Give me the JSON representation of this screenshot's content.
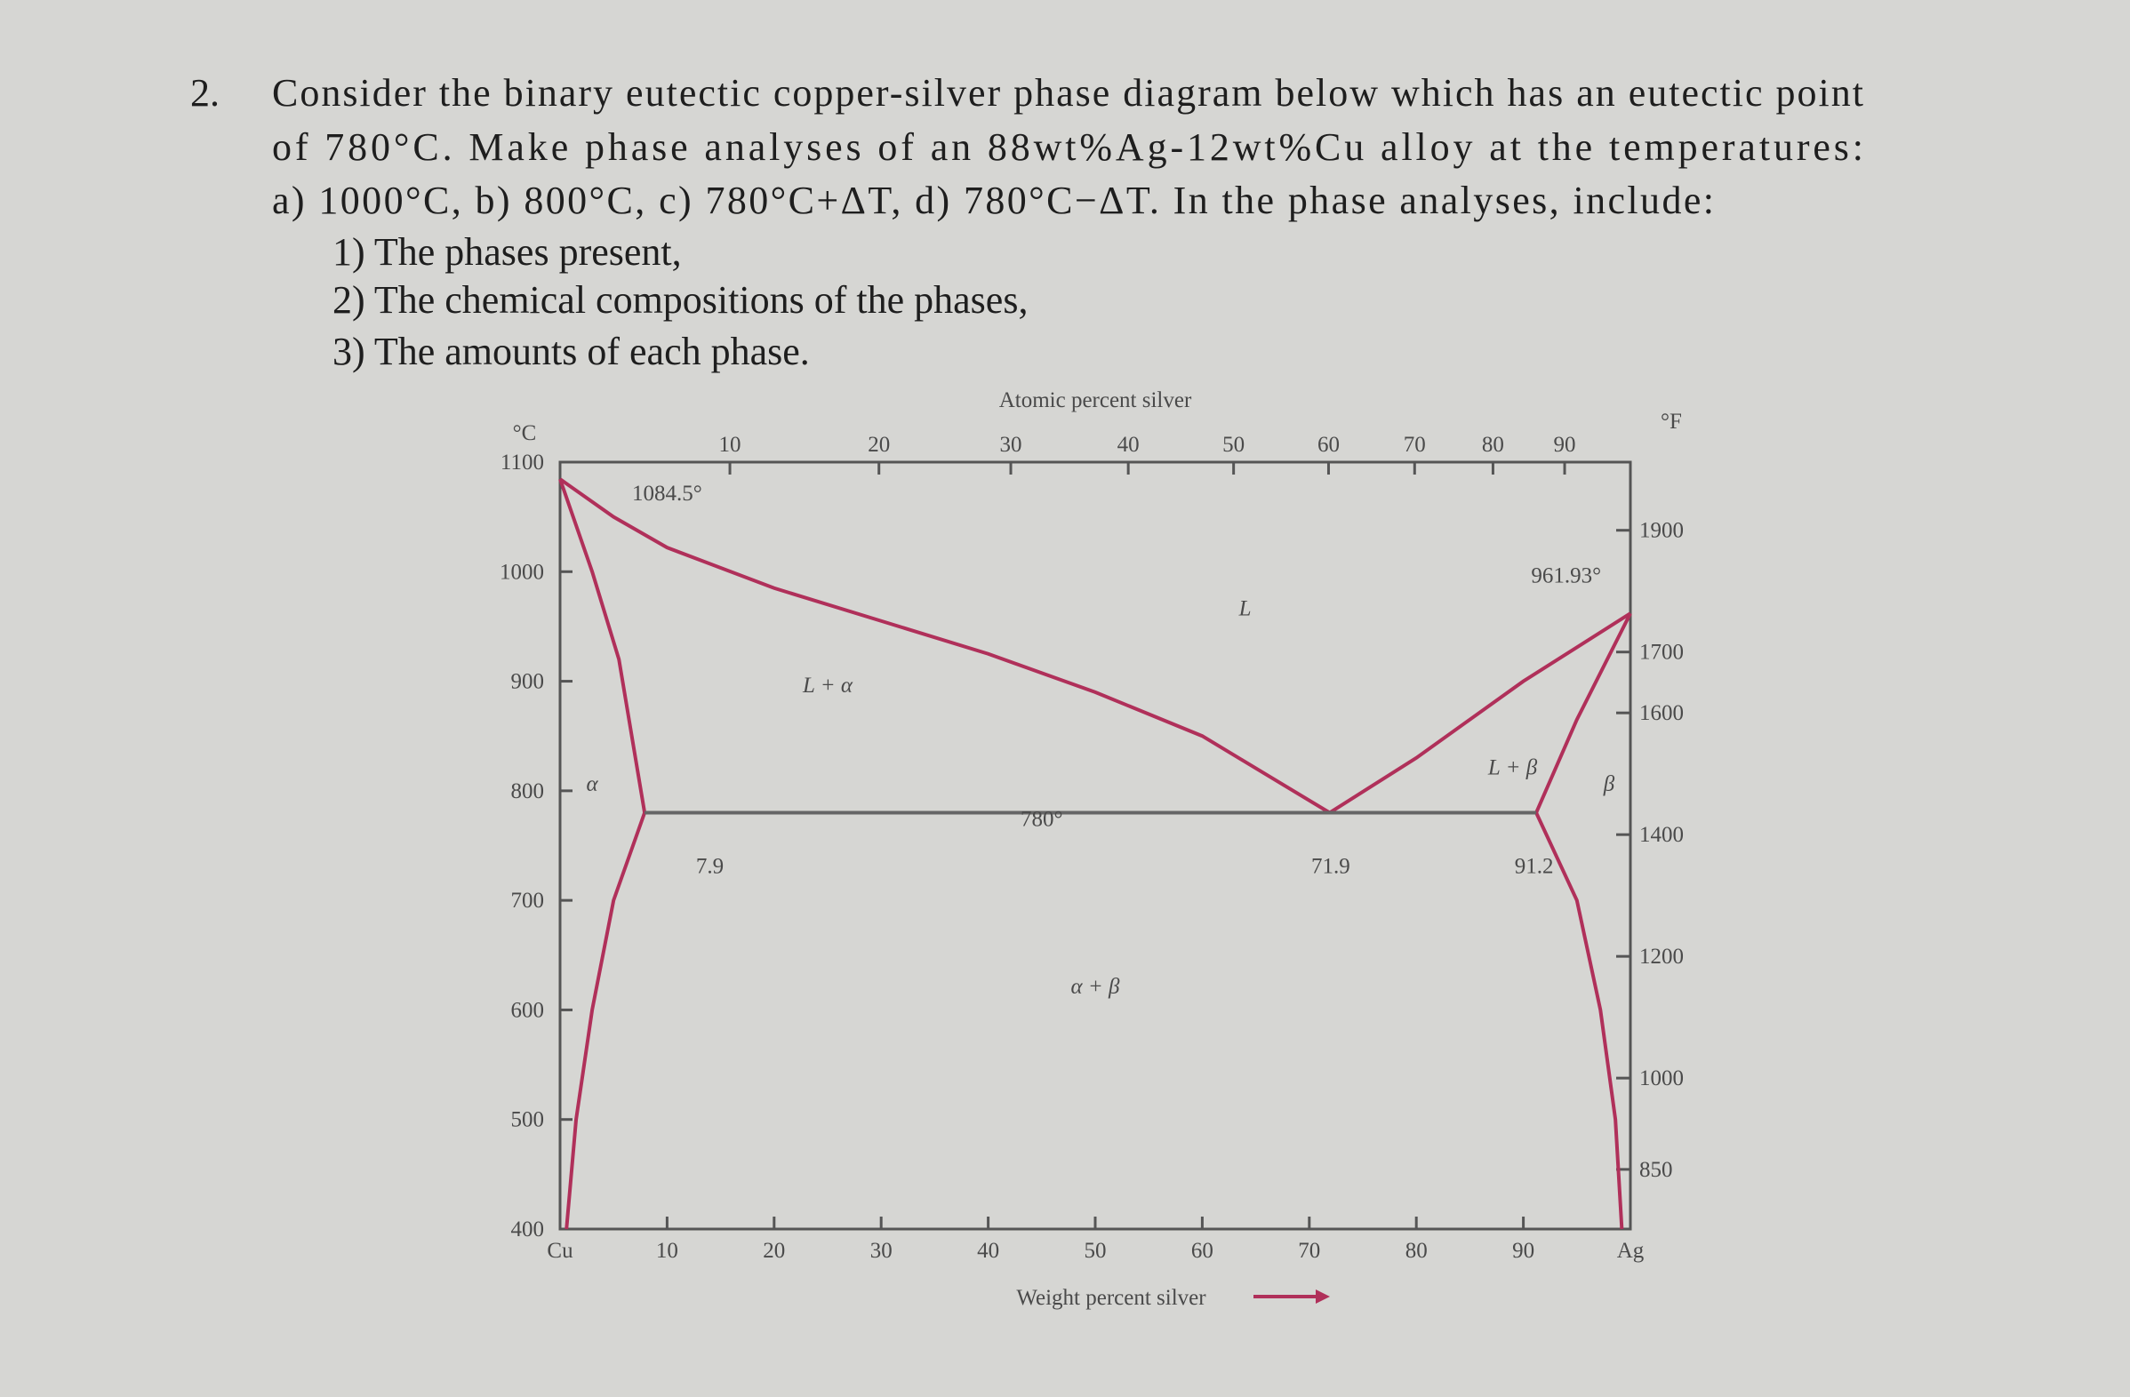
{
  "question": {
    "number": "2.",
    "lines": [
      "Consider the binary eutectic copper-silver phase diagram below which has an eutectic point",
      "of 780°C. Make phase analyses of an 88wt%Ag-12wt%Cu alloy at the temperatures:",
      "a) 1000°C, b) 800°C, c) 780°C+ΔT, d) 780°C−ΔT. In the phase analyses, include:"
    ],
    "items": [
      "1) The phases present,",
      "2) The chemical compositions of the phases,",
      "3) The amounts of each phase."
    ]
  },
  "diagram": {
    "y_label": "°C",
    "y2_label": "°F",
    "x_label": "Weight percent silver",
    "x2_label": "Atomic percent silver",
    "xlim": [
      0,
      100
    ],
    "ylim": [
      400,
      1100
    ],
    "y2lim": [
      752,
      2012
    ],
    "xticks": [
      {
        "value": 0,
        "label": "Cu"
      },
      10,
      20,
      30,
      40,
      50,
      60,
      70,
      80,
      90,
      {
        "value": 100,
        "label": "Ag"
      }
    ],
    "yticks": [
      400,
      500,
      600,
      700,
      800,
      900,
      1000,
      1100
    ],
    "y2ticks": [
      1900,
      1700,
      1600,
      1400,
      1200,
      1000,
      850
    ],
    "x2ticks": [
      10,
      20,
      30,
      40,
      50,
      60,
      70,
      80,
      90
    ],
    "color": "#b0305a",
    "boundaries": [
      {
        "x": [
          0,
          5,
          10,
          20,
          30,
          40,
          50,
          60,
          71.9
        ],
        "y": [
          1084.5,
          1050,
          1022,
          985,
          955,
          925,
          890,
          850,
          780
        ]
      },
      {
        "x": [
          71.9,
          80,
          90,
          100
        ],
        "y": [
          780,
          830,
          900,
          961.93
        ]
      },
      {
        "x": [
          0,
          3,
          5.5,
          7.9
        ],
        "y": [
          1084.5,
          1000,
          920,
          780
        ]
      },
      {
        "x": [
          7.9,
          5,
          3,
          1.5,
          0.6
        ],
        "y": [
          780,
          700,
          600,
          500,
          400
        ]
      },
      {
        "x": [
          91.2,
          95,
          100
        ],
        "y": [
          780,
          865,
          961.93
        ]
      },
      {
        "x": [
          91.2,
          95,
          97.2,
          98.6,
          99.2
        ],
        "y": [
          780,
          700,
          600,
          500,
          400
        ]
      }
    ],
    "eutectic": {
      "x": [
        7.9,
        91.2
      ],
      "y": [
        780,
        780
      ]
    },
    "annotations": [
      "1084.5°",
      "961.93°",
      "780°",
      "7.9",
      "71.9",
      "91.2",
      "L",
      "L + α",
      "L + β",
      "α",
      "β",
      "α + β"
    ]
  }
}
